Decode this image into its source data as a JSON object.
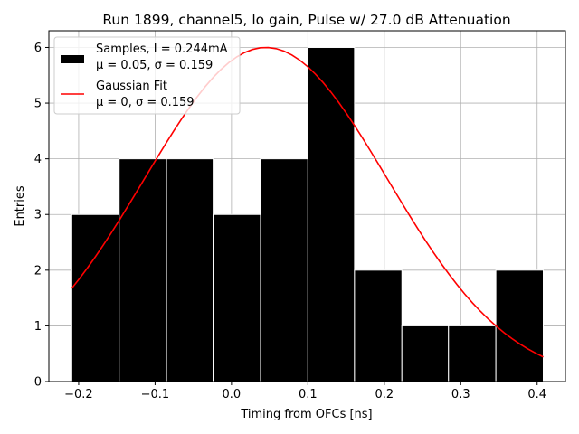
{
  "chart_data": {
    "type": "bar",
    "title": "Run 1899, channel5, lo gain, Pulse w/ 27.0 dB Attenuation",
    "xlabel": "Timing from OFCs [ns]",
    "ylabel": "Entries",
    "xlim": [
      -0.239,
      0.437
    ],
    "ylim": [
      0,
      6.3
    ],
    "xticks": [
      -0.2,
      -0.1,
      0.0,
      0.1,
      0.2,
      0.3,
      0.4
    ],
    "xtick_labels": [
      "−0.2",
      "−0.1",
      "0.0",
      "0.1",
      "0.2",
      "0.3",
      "0.4"
    ],
    "yticks": [
      0,
      1,
      2,
      3,
      4,
      5,
      6
    ],
    "ytick_labels": [
      "0",
      "1",
      "2",
      "3",
      "4",
      "5",
      "6"
    ],
    "grid": true,
    "legend_position": "top-left",
    "histogram": {
      "name_line1": "Samples, I = 0.244mA",
      "name_line2": "μ = 0.05, σ = 0.159",
      "color": "#000000",
      "edgecolor": "#ffffff",
      "bin_edges": [
        -0.209,
        -0.147,
        -0.085,
        -0.024,
        0.038,
        0.1,
        0.161,
        0.223,
        0.284,
        0.346,
        0.408
      ],
      "counts": [
        3,
        4,
        4,
        3,
        4,
        6,
        2,
        1,
        1,
        2
      ]
    },
    "fit": {
      "name_line1": "Gaussian Fit",
      "name_line2": "μ = 0, σ = 0.159",
      "color": "#ff0000",
      "amplitude": 6.0,
      "mean": 0.045,
      "sigma": 0.159,
      "x_range": [
        -0.209,
        0.408
      ]
    }
  }
}
